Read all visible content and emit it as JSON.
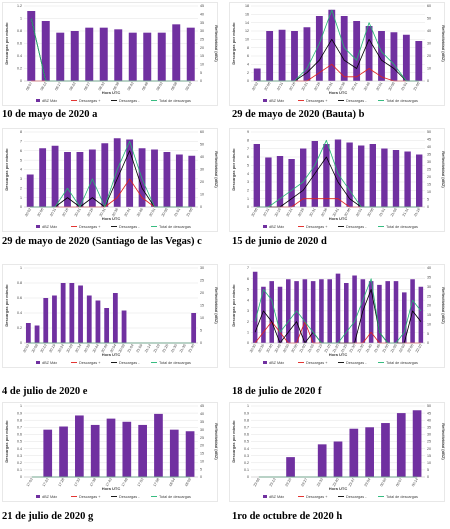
{
  "colors": {
    "bar": "#7030a0",
    "pos": "#e0201c",
    "neg": "#000000",
    "total": "#22b573"
  },
  "legend": {
    "bar": "dBZ Máx",
    "pos": "Descargas +",
    "neg": "Descargas -",
    "total": "Total de descargas"
  },
  "xlabel": "Hora UTC",
  "ylabel": "Descargas por minuto",
  "y2label": "Reflectividad (dBZ)",
  "captions": {
    "a": "10 de mayo de 2020 a",
    "b": "29 de mayo de 2020 (Bauta) b",
    "c": "29 de mayo de 2020 (Santiago de las Vegas) c",
    "d": "15 de junio de 2020 d",
    "e": "4 de julio de 2020 e",
    "f": "18 de julio de 2020 f",
    "g": "21 de julio de 2020 g",
    "h": "1ro de octubre de 2020 h"
  },
  "chart_data": [
    {
      "id": "a",
      "type": "bar",
      "categories": [
        "08:07",
        "08:12",
        "08:17",
        "08:22",
        "08:27",
        "08:33",
        "08:38",
        "08:43",
        "08:48",
        "08:53",
        "08:58",
        "09:03"
      ],
      "ylim": [
        0,
        1.2
      ],
      "yticks": [
        0,
        0.2,
        0.4,
        0.6,
        0.8,
        1,
        1.2
      ],
      "y2lim": [
        0,
        45
      ],
      "y2ticks": [
        0,
        5,
        10,
        15,
        20,
        25,
        30,
        35,
        40,
        45
      ],
      "series": [
        {
          "name": "dBZ Máx",
          "kind": "bar",
          "axis": "y2",
          "values": [
            42,
            36,
            29,
            30,
            32,
            32,
            31,
            29,
            29,
            29,
            34,
            32
          ]
        },
        {
          "name": "Descargas +",
          "kind": "line",
          "axis": "y",
          "values": [
            0,
            0,
            0,
            0,
            0,
            0,
            0,
            0,
            0,
            0,
            0,
            0
          ]
        },
        {
          "name": "Descargas -",
          "kind": "line",
          "axis": "y",
          "values": [
            1,
            0,
            0,
            0,
            0,
            0,
            0,
            0,
            0,
            0,
            0,
            0
          ]
        },
        {
          "name": "Total de descargas",
          "kind": "line",
          "axis": "y",
          "values": [
            1,
            0,
            0,
            0,
            0,
            0,
            0,
            0,
            0,
            0,
            0,
            0
          ]
        }
      ]
    },
    {
      "id": "b",
      "type": "bar",
      "categories": [
        "20:02",
        "20:06",
        "20:11",
        "20:16",
        "20:21",
        "20:26",
        "20:31",
        "20:36",
        "20:41",
        "20:46",
        "20:51",
        "20:56",
        "21:01",
        "21:06"
      ],
      "ylim": [
        0,
        18
      ],
      "yticks": [
        0,
        2,
        4,
        6,
        8,
        10,
        12,
        14,
        16,
        18
      ],
      "y2lim": [
        0,
        60
      ],
      "y2ticks": [
        0,
        10,
        20,
        30,
        40,
        50,
        60
      ],
      "series": [
        {
          "name": "dBZ Máx",
          "kind": "bar",
          "axis": "y2",
          "values": [
            10,
            40,
            41,
            40,
            43,
            52,
            57,
            52,
            48,
            44,
            40,
            39,
            37,
            32
          ]
        },
        {
          "name": "Descargas +",
          "kind": "line",
          "axis": "y",
          "values": [
            0,
            0,
            0,
            0,
            0,
            2,
            4,
            1,
            1,
            3,
            1,
            0,
            0,
            0
          ]
        },
        {
          "name": "Descargas -",
          "kind": "line",
          "axis": "y",
          "values": [
            0,
            0,
            0,
            0,
            2,
            5,
            10,
            5,
            3,
            10,
            5,
            3,
            0,
            0
          ]
        },
        {
          "name": "Total de descargas",
          "kind": "line",
          "axis": "y",
          "values": [
            0,
            0,
            0,
            0,
            3,
            9,
            17,
            8,
            5,
            14,
            7,
            4,
            0,
            0
          ]
        }
      ]
    },
    {
      "id": "c",
      "type": "bar",
      "categories": [
        "20:02",
        "20:06",
        "20:11",
        "20:16",
        "20:21",
        "20:26",
        "20:31",
        "20:36",
        "20:41",
        "20:46",
        "20:51",
        "20:56",
        "21:01",
        "21:06"
      ],
      "ylim": [
        0,
        8
      ],
      "yticks": [
        0,
        1,
        2,
        3,
        4,
        5,
        6,
        7,
        8
      ],
      "y2lim": [
        0,
        60
      ],
      "y2ticks": [
        0,
        10,
        20,
        30,
        40,
        50,
        60
      ],
      "series": [
        {
          "name": "dBZ Máx",
          "kind": "bar",
          "axis": "y2",
          "values": [
            26,
            47,
            49,
            44,
            44,
            46,
            51,
            55,
            54,
            47,
            46,
            44,
            42,
            41
          ]
        },
        {
          "name": "Descargas +",
          "kind": "line",
          "axis": "y",
          "values": [
            0,
            0,
            0,
            0,
            0,
            0,
            0,
            1,
            3,
            1,
            0,
            0,
            0,
            0
          ]
        },
        {
          "name": "Descargas -",
          "kind": "line",
          "axis": "y",
          "values": [
            0,
            0,
            0,
            1,
            0,
            1,
            0,
            3,
            6,
            2,
            0,
            0,
            0,
            0
          ]
        },
        {
          "name": "Total de descargas",
          "kind": "line",
          "axis": "y",
          "values": [
            0,
            0,
            0,
            2,
            0,
            3,
            0,
            4,
            7,
            3,
            0,
            0,
            0,
            0
          ]
        }
      ]
    },
    {
      "id": "d",
      "type": "bar",
      "categories": [
        "20:06",
        "20:11",
        "20:16",
        "20:21",
        "20:26",
        "20:31",
        "20:36",
        "20:41",
        "20:46",
        "20:51",
        "20:56",
        "21:01",
        "21:06",
        "21:11",
        "21:16"
      ],
      "ylim": [
        0,
        9
      ],
      "yticks": [
        0,
        1,
        2,
        3,
        4,
        5,
        6,
        7,
        8,
        9
      ],
      "y2lim": [
        0,
        50
      ],
      "y2ticks": [
        0,
        5,
        10,
        15,
        20,
        25,
        30,
        35,
        40,
        45,
        50
      ],
      "series": [
        {
          "name": "dBZ Máx",
          "kind": "bar",
          "axis": "y2",
          "values": [
            42,
            33,
            34,
            32,
            39,
            44,
            42,
            45,
            43,
            41,
            42,
            39,
            38,
            37,
            35
          ]
        },
        {
          "name": "Descargas +",
          "kind": "line",
          "axis": "y",
          "values": [
            0,
            0,
            0,
            0,
            1,
            1,
            1,
            1,
            0,
            0,
            0,
            0,
            0,
            0,
            0
          ]
        },
        {
          "name": "Descargas -",
          "kind": "line",
          "axis": "y",
          "values": [
            0,
            0,
            0,
            1,
            2,
            4,
            6,
            3,
            1,
            0,
            0,
            0,
            0,
            0,
            0
          ]
        },
        {
          "name": "Total de descargas",
          "kind": "line",
          "axis": "y",
          "values": [
            0,
            0,
            1,
            2,
            3,
            5,
            8,
            4,
            2,
            0,
            0,
            0,
            0,
            0,
            0
          ]
        }
      ]
    },
    {
      "id": "e",
      "type": "bar",
      "categories": [
        "20:03",
        "20:08",
        "20:13",
        "20:19",
        "20:24",
        "20:29",
        "20:34",
        "20:39",
        "20:44",
        "20:49",
        "20:54",
        "20:59",
        "21:04",
        "21:09",
        "21:14",
        "21:19",
        "21:25",
        "21:30",
        "21:35",
        "21:40"
      ],
      "ylim": [
        0,
        1
      ],
      "yticks": [
        0,
        0.2,
        0.4,
        0.6,
        0.8,
        1
      ],
      "y2lim": [
        0,
        30
      ],
      "y2ticks": [
        0,
        5,
        10,
        15,
        20,
        25,
        30
      ],
      "series": [
        {
          "name": "dBZ Máx",
          "kind": "bar",
          "axis": "y2",
          "values": [
            8,
            7,
            18,
            19,
            24,
            24,
            23,
            19,
            17,
            14,
            20,
            13,
            0,
            0,
            0,
            0,
            0,
            0,
            0,
            12
          ]
        },
        {
          "name": "Descargas +",
          "kind": "line",
          "axis": "y",
          "values": [
            0,
            0,
            0,
            0,
            0,
            0,
            0,
            0,
            0,
            0,
            0,
            0,
            0,
            0,
            0,
            0,
            0,
            0,
            0,
            0
          ]
        },
        {
          "name": "Descargas -",
          "kind": "line",
          "axis": "y",
          "values": [
            0,
            0,
            0,
            0,
            0,
            0,
            0,
            0,
            0,
            0,
            0,
            0,
            0,
            0,
            0,
            0,
            0,
            0,
            0,
            0
          ]
        },
        {
          "name": "Total de descargas",
          "kind": "line",
          "axis": "y",
          "values": [
            0,
            0,
            0,
            0,
            0,
            0,
            0,
            0,
            0,
            0,
            0,
            0,
            0,
            0,
            0,
            0,
            0,
            0,
            0,
            0
          ]
        }
      ]
    },
    {
      "id": "f",
      "type": "bar",
      "categories": [
        "20:30",
        "20:35",
        "20:40",
        "20:45",
        "20:50",
        "20:55",
        "21:00",
        "21:05",
        "21:10",
        "21:15",
        "21:20",
        "21:25",
        "21:30",
        "21:35",
        "21:40",
        "21:45",
        "21:50",
        "21:55",
        "22:00",
        "22:05",
        "22:10"
      ],
      "ylim": [
        0,
        7
      ],
      "yticks": [
        0,
        1,
        2,
        3,
        4,
        5,
        6,
        7
      ],
      "y2lim": [
        0,
        40
      ],
      "y2ticks": [
        0,
        5,
        10,
        15,
        20,
        25,
        30,
        35,
        40
      ],
      "series": [
        {
          "name": "dBZ Máx",
          "kind": "bar",
          "axis": "y2",
          "values": [
            38,
            30,
            33,
            30,
            34,
            33,
            34,
            33,
            34,
            34,
            37,
            32,
            36,
            34,
            33,
            31,
            33,
            33,
            27,
            34,
            30
          ]
        },
        {
          "name": "Descargas +",
          "kind": "line",
          "axis": "y",
          "values": [
            0,
            1,
            2,
            1,
            0,
            0,
            2,
            0,
            0,
            0,
            0,
            0,
            0,
            0,
            1,
            0,
            0,
            0,
            0,
            0,
            0
          ]
        },
        {
          "name": "Descargas -",
          "kind": "line",
          "axis": "y",
          "values": [
            1,
            3,
            2,
            0,
            1,
            2,
            0,
            1,
            0,
            0,
            0,
            0,
            0,
            3,
            5,
            1,
            0,
            0,
            0,
            3,
            2
          ]
        },
        {
          "name": "Total de descargas",
          "kind": "line",
          "axis": "y",
          "values": [
            2,
            5,
            4,
            1,
            2,
            3,
            2,
            1,
            0,
            0,
            0,
            1,
            2,
            4,
            6,
            1,
            0,
            0,
            1,
            4,
            3
          ]
        }
      ]
    },
    {
      "id": "g",
      "type": "bar",
      "categories": [
        "17:03",
        "17:23",
        "17:28",
        "17:33",
        "17:38",
        "17:43",
        "17:48",
        "17:53",
        "17:58",
        "18:04",
        "18:09"
      ],
      "ylim": [
        0,
        1
      ],
      "yticks": [
        0,
        0.1,
        0.2,
        0.3,
        0.4,
        0.5,
        0.6,
        0.7,
        0.8,
        0.9,
        1
      ],
      "y2lim": [
        0,
        45
      ],
      "y2ticks": [
        0,
        5,
        10,
        15,
        20,
        25,
        30,
        35,
        40,
        45
      ],
      "series": [
        {
          "name": "dBZ Máx",
          "kind": "bar",
          "axis": "y2",
          "values": [
            0,
            30,
            32,
            39,
            33,
            37,
            35,
            33,
            40,
            30,
            29
          ]
        },
        {
          "name": "Descargas +",
          "kind": "line",
          "axis": "y",
          "values": [
            0,
            0,
            0,
            0,
            0,
            0,
            0,
            0,
            0,
            0,
            0
          ]
        },
        {
          "name": "Descargas -",
          "kind": "line",
          "axis": "y",
          "values": [
            0,
            0,
            0,
            0,
            0,
            0,
            0,
            0,
            0,
            0,
            0
          ]
        },
        {
          "name": "Total de descargas",
          "kind": "line",
          "axis": "y",
          "values": [
            0,
            0,
            0,
            0,
            0,
            0,
            0,
            0,
            0,
            0,
            0
          ]
        }
      ]
    },
    {
      "id": "h",
      "type": "bar",
      "categories": [
        "23:06",
        "23:13",
        "23:20",
        "23:27",
        "23:33",
        "23:40",
        "23:47",
        "23:54",
        "00:00",
        "00:07",
        "00:14"
      ],
      "ylim": [
        0,
        1
      ],
      "yticks": [
        0,
        0.1,
        0.2,
        0.3,
        0.4,
        0.5,
        0.6,
        0.7,
        0.8,
        0.9,
        1
      ],
      "y2lim": [
        0,
        50
      ],
      "y2ticks": [
        0,
        5,
        10,
        15,
        20,
        25,
        30,
        35,
        40,
        45,
        50
      ],
      "series": [
        {
          "name": "dBZ Máx",
          "kind": "bar",
          "axis": "y2",
          "values": [
            0,
            0,
            14,
            0,
            23,
            25,
            34,
            35,
            38,
            45,
            47
          ]
        },
        {
          "name": "Descargas +",
          "kind": "line",
          "axis": "y",
          "values": [
            0,
            0,
            0,
            0,
            0,
            0,
            0,
            0,
            0,
            0,
            0
          ]
        },
        {
          "name": "Descargas -",
          "kind": "line",
          "axis": "y",
          "values": [
            0,
            0,
            0,
            0,
            0,
            0,
            0,
            0,
            0,
            0,
            0
          ]
        },
        {
          "name": "Total de descargas",
          "kind": "line",
          "axis": "y",
          "values": [
            0,
            0,
            0,
            0,
            0,
            0,
            0,
            0,
            0,
            0,
            0
          ]
        }
      ]
    }
  ]
}
